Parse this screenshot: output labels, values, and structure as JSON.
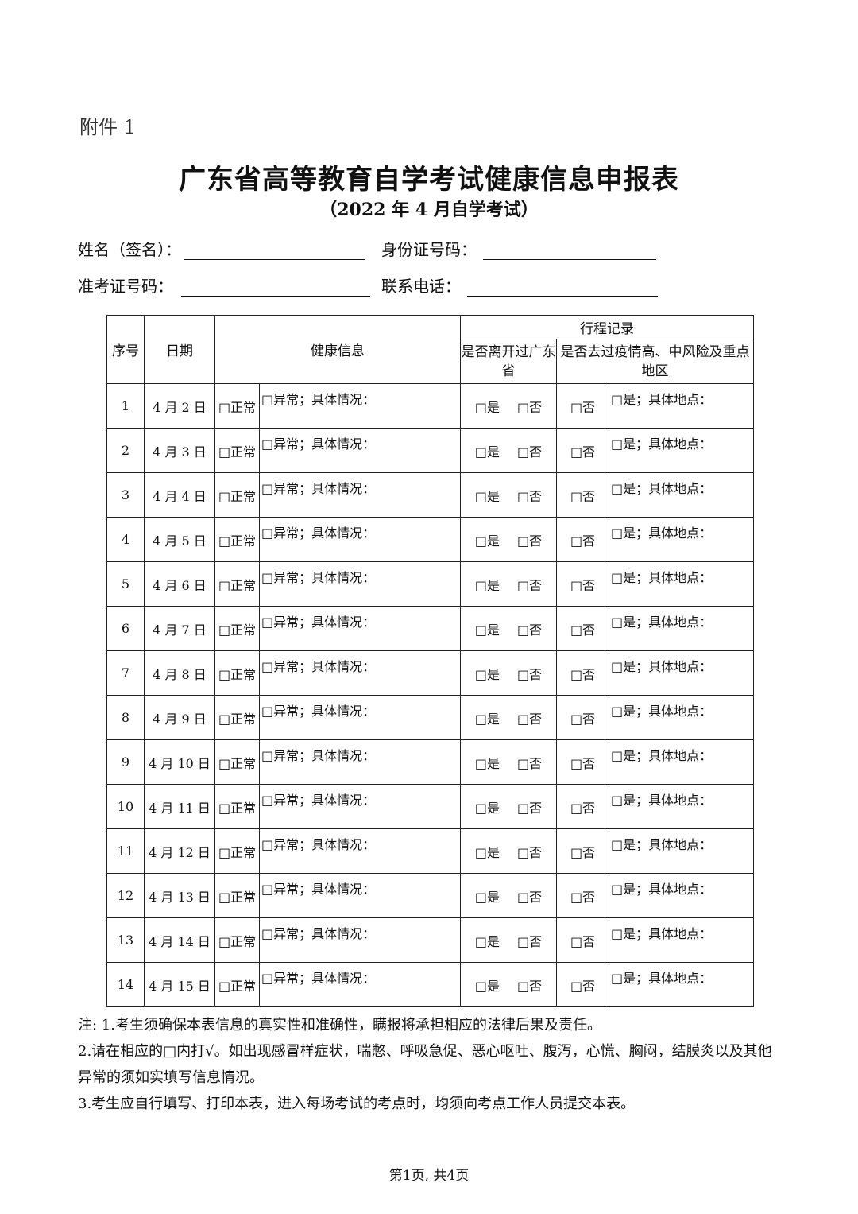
{
  "attachment": "附件 1",
  "title": "广东省高等教育自学考试健康信息申报表",
  "subtitle": "（2022 年 4 月自学考试）",
  "fields": {
    "name": "姓名（签名）：",
    "id": "身份证号码：",
    "exam_no": "准考证号码：",
    "phone": "联系电话："
  },
  "table": {
    "headers": {
      "no": "序号",
      "date": "日期",
      "health": "健康信息",
      "travel": "行程记录",
      "left_gd": "是否离开过广东省",
      "risk": "是否去过疫情高、中风险及重点地区"
    },
    "cells": {
      "normal": "□正常",
      "abnormal": "□异常；具体情况：",
      "yes": "□是",
      "no": "□否",
      "risk_yes": "□是；具体地点："
    },
    "rows": [
      {
        "no": "1",
        "date": "4 月 2 日"
      },
      {
        "no": "2",
        "date": "4 月 3 日"
      },
      {
        "no": "3",
        "date": "4 月 4 日"
      },
      {
        "no": "4",
        "date": "4 月 5 日"
      },
      {
        "no": "5",
        "date": "4 月 6 日"
      },
      {
        "no": "6",
        "date": "4 月 7 日"
      },
      {
        "no": "7",
        "date": "4 月 8 日"
      },
      {
        "no": "8",
        "date": "4 月 9 日"
      },
      {
        "no": "9",
        "date": "4 月 10 日"
      },
      {
        "no": "10",
        "date": "4 月 11 日"
      },
      {
        "no": "11",
        "date": "4 月 12 日"
      },
      {
        "no": "12",
        "date": "4 月 13 日"
      },
      {
        "no": "13",
        "date": "4 月 14 日"
      },
      {
        "no": "14",
        "date": "4 月 15 日"
      }
    ]
  },
  "notes": [
    "注: 1.考生须确保本表信息的真实性和准确性，瞒报将承担相应的法律后果及责任。",
    "2.请在相应的□内打√。如出现感冒样症状，喘憋、呼吸急促、恶心呕吐、腹泻，心慌、胸闷，结膜炎以及其他异常的须如实填写信息情况。",
    "3.考生应自行填写、打印本表，进入每场考试的考点时，均须向考点工作人员提交本表。"
  ],
  "footer": "第1页, 共4页"
}
